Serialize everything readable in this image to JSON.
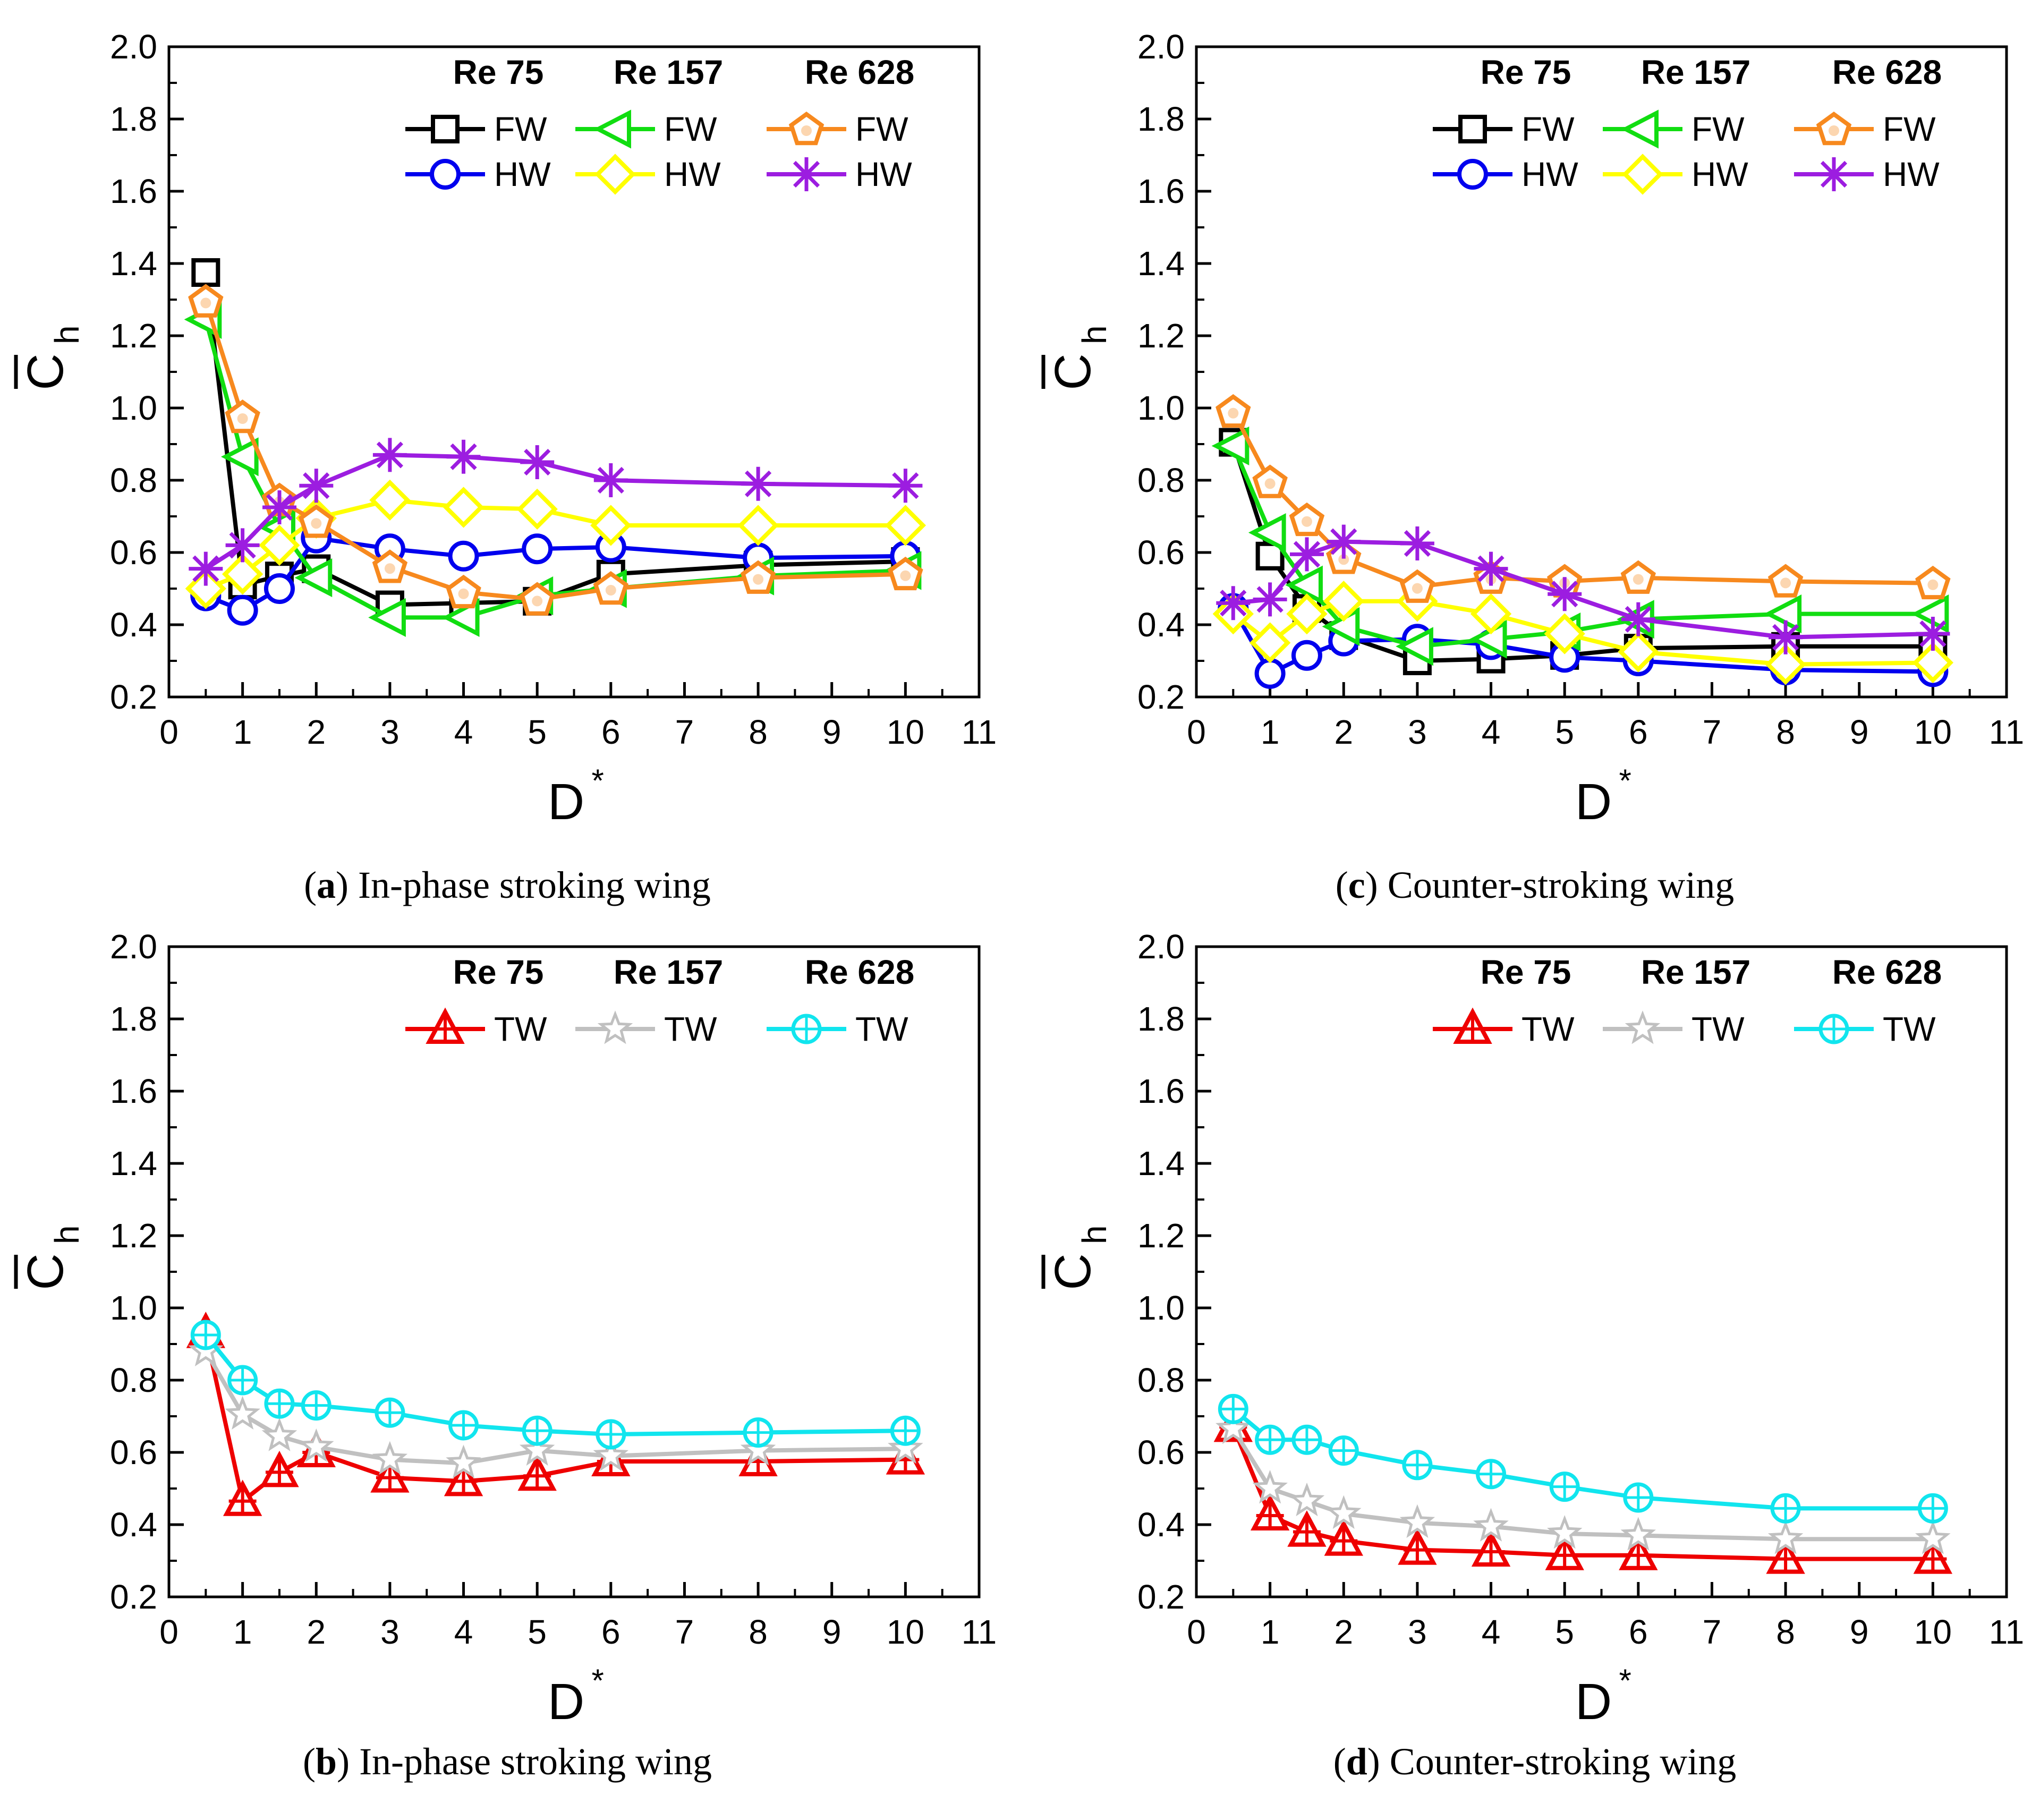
{
  "chart_data": [
    {
      "id": "a",
      "type": "line",
      "caption_letter": "a",
      "caption_text": "In-phase stroking wing",
      "ylabel": "C",
      "ylabel_sub": "h",
      "xlabel": "D",
      "xlabel_sup": "*",
      "xlim": [
        0,
        11
      ],
      "ylim": [
        0.2,
        2.0
      ],
      "x_ticks": [
        "0",
        "1",
        "2",
        "3",
        "4",
        "5",
        "6",
        "7",
        "8",
        "9",
        "10",
        "11"
      ],
      "y_ticks": [
        "0.2",
        "0.4",
        "0.6",
        "0.8",
        "1.0",
        "1.2",
        "1.4",
        "1.6",
        "1.8",
        "2.0"
      ],
      "legend_headers": [
        "Re 75",
        "Re 157",
        "Re 628"
      ],
      "x": [
        0.5,
        1,
        1.5,
        2,
        3,
        4,
        5,
        6,
        8,
        10
      ],
      "series": [
        {
          "name": "FW",
          "re": "Re 75",
          "color": "#000000",
          "marker": "square",
          "values": [
            1.375,
            0.51,
            0.535,
            0.555,
            0.455,
            0.46,
            0.465,
            0.54,
            0.565,
            0.575
          ]
        },
        {
          "name": "HW",
          "re": "Re 75",
          "color": "#0000ee",
          "marker": "circle",
          "values": [
            0.48,
            0.44,
            0.5,
            0.64,
            0.61,
            0.59,
            0.61,
            0.615,
            0.585,
            0.59
          ]
        },
        {
          "name": "FW",
          "re": "Re 157",
          "color": "#11dd11",
          "marker": "triangle-left",
          "values": [
            1.245,
            0.865,
            0.67,
            0.53,
            0.42,
            0.42,
            0.48,
            0.5,
            0.535,
            0.55
          ]
        },
        {
          "name": "HW",
          "re": "Re 157",
          "color": "#ffff00",
          "marker": "diamond",
          "values": [
            0.5,
            0.54,
            0.62,
            0.695,
            0.745,
            0.725,
            0.72,
            0.675,
            0.675,
            0.675
          ]
        },
        {
          "name": "FW",
          "re": "Re 628",
          "color": "#f7891e",
          "marker": "pentagon",
          "values": [
            1.295,
            0.975,
            0.745,
            0.685,
            0.56,
            0.49,
            0.47,
            0.5,
            0.53,
            0.54
          ]
        },
        {
          "name": "HW",
          "re": "Re 628",
          "color": "#9c1de0",
          "marker": "asterisk",
          "values": [
            0.555,
            0.62,
            0.725,
            0.785,
            0.87,
            0.865,
            0.85,
            0.8,
            0.79,
            0.785
          ]
        }
      ]
    },
    {
      "id": "c",
      "type": "line",
      "caption_letter": "c",
      "caption_text": "Counter-stroking wing",
      "ylabel": "C",
      "ylabel_sub": "h",
      "xlabel": "D",
      "xlabel_sup": "*",
      "xlim": [
        0,
        11
      ],
      "ylim": [
        0.2,
        2.0
      ],
      "x_ticks": [
        "0",
        "1",
        "2",
        "3",
        "4",
        "5",
        "6",
        "7",
        "8",
        "9",
        "10",
        "11"
      ],
      "y_ticks": [
        "0.2",
        "0.4",
        "0.6",
        "0.8",
        "1.0",
        "1.2",
        "1.4",
        "1.6",
        "1.8",
        "2.0"
      ],
      "legend_headers": [
        "Re 75",
        "Re 157",
        "Re 628"
      ],
      "x": [
        0.5,
        1,
        1.5,
        2,
        3,
        4,
        5,
        6,
        8,
        10
      ],
      "series": [
        {
          "name": "FW",
          "re": "Re 75",
          "color": "#000000",
          "marker": "square",
          "values": [
            0.905,
            0.59,
            0.445,
            0.37,
            0.3,
            0.305,
            0.315,
            0.335,
            0.34,
            0.34
          ]
        },
        {
          "name": "HW",
          "re": "Re 75",
          "color": "#0000ee",
          "marker": "circle",
          "values": [
            0.445,
            0.265,
            0.315,
            0.355,
            0.36,
            0.345,
            0.31,
            0.3,
            0.275,
            0.27
          ]
        },
        {
          "name": "FW",
          "re": "Re 157",
          "color": "#11dd11",
          "marker": "triangle-left",
          "values": [
            0.895,
            0.655,
            0.51,
            0.395,
            0.34,
            0.36,
            0.38,
            0.415,
            0.43,
            0.43
          ]
        },
        {
          "name": "HW",
          "re": "Re 157",
          "color": "#ffff00",
          "marker": "diamond",
          "values": [
            0.43,
            0.35,
            0.43,
            0.465,
            0.465,
            0.43,
            0.375,
            0.325,
            0.29,
            0.295
          ]
        },
        {
          "name": "FW",
          "re": "Re 628",
          "color": "#f7891e",
          "marker": "pentagon",
          "values": [
            0.99,
            0.795,
            0.69,
            0.585,
            0.505,
            0.53,
            0.52,
            0.53,
            0.52,
            0.515
          ]
        },
        {
          "name": "HW",
          "re": "Re 628",
          "color": "#9c1de0",
          "marker": "asterisk",
          "values": [
            0.46,
            0.47,
            0.595,
            0.63,
            0.625,
            0.555,
            0.485,
            0.415,
            0.365,
            0.375
          ]
        }
      ]
    },
    {
      "id": "b",
      "type": "line",
      "caption_letter": "b",
      "caption_text": "In-phase stroking wing",
      "ylabel": "C",
      "ylabel_sub": "h",
      "xlabel": "D",
      "xlabel_sup": "*",
      "xlim": [
        0,
        11
      ],
      "ylim": [
        0.2,
        2.0
      ],
      "x_ticks": [
        "0",
        "1",
        "2",
        "3",
        "4",
        "5",
        "6",
        "7",
        "8",
        "9",
        "10",
        "11"
      ],
      "y_ticks": [
        "0.2",
        "0.4",
        "0.6",
        "0.8",
        "1.0",
        "1.2",
        "1.4",
        "1.6",
        "1.8",
        "2.0"
      ],
      "legend_headers": [
        "Re 75",
        "Re 157",
        "Re 628"
      ],
      "x": [
        0.5,
        1,
        1.5,
        2,
        3,
        4,
        5,
        6,
        8,
        10
      ],
      "series": [
        {
          "name": "TW",
          "re": "Re 75",
          "color": "#ee0000",
          "marker": "triangle-up",
          "values": [
            0.93,
            0.465,
            0.545,
            0.6,
            0.53,
            0.52,
            0.535,
            0.575,
            0.575,
            0.58
          ]
        },
        {
          "name": "TW",
          "re": "Re 157",
          "color": "#c0c0c0",
          "marker": "star",
          "values": [
            0.88,
            0.705,
            0.645,
            0.615,
            0.58,
            0.57,
            0.605,
            0.59,
            0.605,
            0.61
          ]
        },
        {
          "name": "TW",
          "re": "Re 628",
          "color": "#11e5ee",
          "marker": "circle-plus",
          "values": [
            0.925,
            0.8,
            0.735,
            0.73,
            0.71,
            0.675,
            0.66,
            0.65,
            0.655,
            0.66
          ]
        }
      ]
    },
    {
      "id": "d",
      "type": "line",
      "caption_letter": "d",
      "caption_text": "Counter-stroking wing",
      "ylabel": "C",
      "ylabel_sub": "h",
      "xlabel": "D",
      "xlabel_sup": "*",
      "xlim": [
        0,
        11
      ],
      "ylim": [
        0.2,
        2.0
      ],
      "x_ticks": [
        "0",
        "1",
        "2",
        "3",
        "4",
        "5",
        "6",
        "7",
        "8",
        "9",
        "10",
        "11"
      ],
      "y_ticks": [
        "0.2",
        "0.4",
        "0.6",
        "0.8",
        "1.0",
        "1.2",
        "1.4",
        "1.6",
        "1.8",
        "2.0"
      ],
      "legend_headers": [
        "Re 75",
        "Re 157",
        "Re 628"
      ],
      "x": [
        0.5,
        1,
        1.5,
        2,
        3,
        4,
        5,
        6,
        8,
        10
      ],
      "series": [
        {
          "name": "TW",
          "re": "Re 75",
          "color": "#ee0000",
          "marker": "triangle-up",
          "values": [
            0.67,
            0.425,
            0.38,
            0.355,
            0.33,
            0.325,
            0.315,
            0.315,
            0.305,
            0.305
          ]
        },
        {
          "name": "TW",
          "re": "Re 157",
          "color": "#c0c0c0",
          "marker": "star",
          "values": [
            0.665,
            0.5,
            0.465,
            0.43,
            0.405,
            0.395,
            0.375,
            0.37,
            0.36,
            0.36
          ]
        },
        {
          "name": "TW",
          "re": "Re 628",
          "color": "#11e5ee",
          "marker": "circle-plus",
          "values": [
            0.72,
            0.635,
            0.635,
            0.605,
            0.565,
            0.54,
            0.505,
            0.475,
            0.445,
            0.445
          ]
        }
      ]
    }
  ]
}
